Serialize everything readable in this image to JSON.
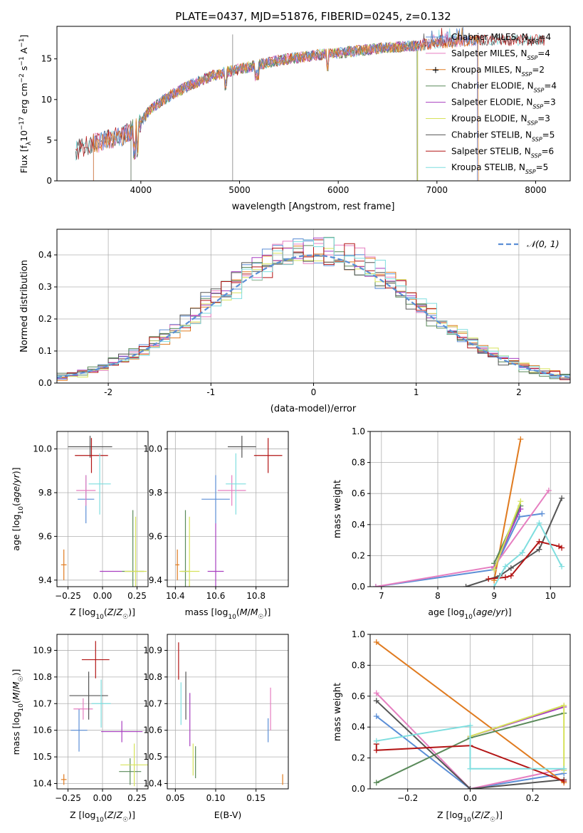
{
  "title": "PLATE=0437, MJD=51876, FIBERID=0245, z=0.132",
  "colors": {
    "Chabrier MILES": "#5b8ed6",
    "Salpeter MILES": "#e67ec0",
    "Kroupa MILES": "#e07b20",
    "Chabrier ELODIE": "#5a8a5a",
    "Salpeter ELODIE": "#a83fc0",
    "Kroupa ELODIE": "#d6e25a",
    "Chabrier STELIB": "#555555",
    "Salpeter STELIB": "#b31515",
    "Kroupa STELIB": "#7fdedf"
  },
  "chart_data": [
    {
      "type": "line",
      "panel": "spectrum",
      "xlabel": "wavelength [Angstrom, rest frame]",
      "ylabel": "Flux [f_λ10^-17 erg cm^-2 s^-1 A^-1]",
      "xlim": [
        3150,
        8350
      ],
      "ylim": [
        0,
        19
      ],
      "xticks": [
        4000,
        5000,
        6000,
        7000,
        8000
      ],
      "yticks": [
        0,
        5,
        10,
        15
      ],
      "grid": false,
      "legend_position": "right",
      "series": [
        {
          "name": "Chabrier MILES",
          "nssp": "4"
        },
        {
          "name": "Salpeter MILES",
          "nssp": "4"
        },
        {
          "name": "Kroupa MILES",
          "nssp": "2"
        },
        {
          "name": "Chabrier ELODIE",
          "nssp": "4"
        },
        {
          "name": "Salpeter ELODIE",
          "nssp": "3"
        },
        {
          "name": "Kroupa ELODIE",
          "nssp": "3"
        },
        {
          "name": "Chabrier STELIB",
          "nssp": "5"
        },
        {
          "name": "Salpeter STELIB",
          "nssp": "6"
        },
        {
          "name": "Kroupa STELIB",
          "nssp": "5"
        }
      ],
      "continuum_x": [
        3340,
        3500,
        3650,
        3800,
        3950,
        4100,
        4300,
        4500,
        4700,
        4900,
        5100,
        5300,
        5500,
        5800,
        6000,
        6200,
        6500,
        6800,
        7000,
        7200,
        7400
      ],
      "continuum_y": [
        3.8,
        4.5,
        5.0,
        5.5,
        6.5,
        8.8,
        10.5,
        11.8,
        12.8,
        13.5,
        14.0,
        14.6,
        15.0,
        15.5,
        15.7,
        16.0,
        16.4,
        16.6,
        16.9,
        17.1,
        17.3
      ]
    },
    {
      "type": "line",
      "panel": "residual_distribution",
      "xlabel": "(data-model)/error",
      "ylabel": "Normed distribution",
      "xlim": [
        -2.5,
        2.5
      ],
      "ylim": [
        0,
        0.48
      ],
      "xticks": [
        -2,
        -1,
        0,
        1,
        2
      ],
      "yticks": [
        0.0,
        0.1,
        0.2,
        0.3,
        0.4
      ],
      "grid": true,
      "legend": "𝒩(0, 1)",
      "legend_position": "top-right"
    },
    {
      "type": "scatter",
      "panel": "age_vs_Z",
      "xlabel": "Z [log₁₀(Z/Z☉)]",
      "ylabel": "age  [log₁₀(age/yr)]",
      "xlim": [
        -0.33,
        0.33
      ],
      "ylim": [
        9.37,
        10.08
      ],
      "xticks": [
        -0.25,
        0.0,
        0.25
      ],
      "xtick_labels": [
        "−0.25",
        "0.00",
        "0.25"
      ],
      "yticks": [
        9.4,
        9.6,
        9.8,
        10.0
      ],
      "grid": true,
      "points": [
        {
          "model": "Chabrier MILES",
          "x": -0.12,
          "xerr": 0.06,
          "y": 9.77,
          "yerr": 0.11
        },
        {
          "model": "Salpeter MILES",
          "x": -0.12,
          "xerr": 0.07,
          "y": 9.81,
          "yerr": 0.07
        },
        {
          "model": "Kroupa MILES",
          "x": -0.28,
          "xerr": 0.02,
          "y": 9.47,
          "yerr": 0.07
        },
        {
          "model": "Chabrier ELODIE",
          "x": 0.22,
          "xerr": 0.08,
          "y": 9.44,
          "yerr": 0.28
        },
        {
          "model": "Salpeter ELODIE",
          "x": 0.06,
          "xerr": 0.08,
          "y": 9.44,
          "yerr": 0.0
        },
        {
          "model": "Kroupa ELODIE",
          "x": 0.24,
          "xerr": 0.08,
          "y": 9.44,
          "yerr": 0.25
        },
        {
          "model": "Chabrier STELIB",
          "x": -0.09,
          "xerr": 0.16,
          "y": 10.01,
          "yerr": 0.05
        },
        {
          "model": "Salpeter STELIB",
          "x": -0.08,
          "xerr": 0.12,
          "y": 9.97,
          "yerr": 0.08
        },
        {
          "model": "Kroupa STELIB",
          "x": -0.02,
          "xerr": 0.08,
          "y": 9.84,
          "yerr": 0.14
        }
      ]
    },
    {
      "type": "scatter",
      "panel": "age_vs_mass",
      "xlabel": "mass [log₁₀(M/M☉)]",
      "xlim": [
        10.36,
        10.96
      ],
      "ylim": [
        9.37,
        10.08
      ],
      "xticks": [
        10.4,
        10.6,
        10.8
      ],
      "yticks": [
        9.4,
        9.6,
        9.8,
        10.0
      ],
      "grid": true,
      "points": [
        {
          "model": "Chabrier MILES",
          "x": 10.6,
          "xerr": 0.07,
          "y": 9.77,
          "yerr": 0.11
        },
        {
          "model": "Salpeter MILES",
          "x": 10.68,
          "xerr": 0.07,
          "y": 9.81,
          "yerr": 0.07
        },
        {
          "model": "Kroupa MILES",
          "x": 10.41,
          "xerr": 0.01,
          "y": 9.47,
          "yerr": 0.07
        },
        {
          "model": "Chabrier ELODIE",
          "x": 10.45,
          "xerr": 0.02,
          "y": 9.44,
          "yerr": 0.28
        },
        {
          "model": "Salpeter ELODIE",
          "x": 10.6,
          "xerr": 0.04,
          "y": 9.44,
          "yerr": 0.22
        },
        {
          "model": "Kroupa ELODIE",
          "x": 10.47,
          "xerr": 0.05,
          "y": 9.44,
          "yerr": 0.25
        },
        {
          "model": "Chabrier STELIB",
          "x": 10.73,
          "xerr": 0.07,
          "y": 10.01,
          "yerr": 0.05
        },
        {
          "model": "Salpeter STELIB",
          "x": 10.86,
          "xerr": 0.07,
          "y": 9.97,
          "yerr": 0.08
        },
        {
          "model": "Kroupa STELIB",
          "x": 10.7,
          "xerr": 0.05,
          "y": 9.84,
          "yerr": 0.14
        }
      ]
    },
    {
      "type": "line",
      "panel": "mass_weight_vs_age",
      "xlabel": "age  [log₁₀(age/yr)]",
      "ylabel": "mass weight",
      "xlim": [
        6.8,
        10.35
      ],
      "ylim": [
        0,
        1.0
      ],
      "xticks": [
        7,
        8,
        9,
        10
      ],
      "yticks": [
        0.0,
        0.2,
        0.4,
        0.6,
        0.8,
        1.0
      ],
      "grid": true,
      "series": [
        {
          "model": "Chabrier MILES",
          "x": [
            6.9,
            9.0,
            9.45,
            9.85
          ],
          "y": [
            0.0,
            0.11,
            0.45,
            0.47
          ]
        },
        {
          "model": "Salpeter MILES",
          "x": [
            6.9,
            9.0,
            9.97
          ],
          "y": [
            0.0,
            0.13,
            0.62
          ]
        },
        {
          "model": "Kroupa MILES",
          "x": [
            9.0,
            9.47
          ],
          "y": [
            0.04,
            0.95
          ]
        },
        {
          "model": "Chabrier ELODIE",
          "x": [
            9.0,
            9.47
          ],
          "y": [
            0.15,
            0.52
          ]
        },
        {
          "model": "Salpeter ELODIE",
          "x": [
            9.0,
            9.47
          ],
          "y": [
            0.12,
            0.5
          ]
        },
        {
          "model": "Kroupa ELODIE",
          "x": [
            9.0,
            9.47
          ],
          "y": [
            0.11,
            0.55
          ]
        },
        {
          "model": "Chabrier STELIB",
          "x": [
            8.5,
            9.1,
            9.3,
            9.8,
            10.2
          ],
          "y": [
            0.0,
            0.07,
            0.12,
            0.24,
            0.57
          ]
        },
        {
          "model": "Salpeter STELIB",
          "x": [
            8.9,
            9.2,
            9.3,
            9.8,
            10.15,
            10.2
          ],
          "y": [
            0.05,
            0.06,
            0.07,
            0.29,
            0.26,
            0.25
          ]
        },
        {
          "model": "Kroupa STELIB",
          "x": [
            9.0,
            9.2,
            9.5,
            9.8,
            10.2
          ],
          "y": [
            0.0,
            0.13,
            0.22,
            0.41,
            0.13
          ]
        }
      ]
    },
    {
      "type": "scatter",
      "panel": "mass_vs_Z",
      "xlabel": "Z [log₁₀(Z/Z☉)]",
      "ylabel": "mass [log₁₀(M/M☉)]",
      "xlim": [
        -0.33,
        0.33
      ],
      "ylim": [
        10.38,
        10.96
      ],
      "xticks": [
        -0.25,
        0.0,
        0.25
      ],
      "xtick_labels": [
        "−0.25",
        "0.00",
        "0.25"
      ],
      "yticks": [
        10.4,
        10.5,
        10.6,
        10.7,
        10.8,
        10.9
      ],
      "grid": true,
      "points": [
        {
          "model": "Chabrier MILES",
          "x": -0.17,
          "xerr": 0.06,
          "y": 10.6,
          "yerr": 0.08
        },
        {
          "model": "Salpeter MILES",
          "x": -0.14,
          "xerr": 0.07,
          "y": 10.68,
          "yerr": 0.04
        },
        {
          "model": "Kroupa MILES",
          "x": -0.28,
          "xerr": 0.02,
          "y": 10.415,
          "yerr": 0.02
        },
        {
          "model": "Chabrier ELODIE",
          "x": 0.2,
          "xerr": 0.08,
          "y": 10.445,
          "yerr": 0.05
        },
        {
          "model": "Salpeter ELODIE",
          "x": 0.14,
          "xerr": 0.15,
          "y": 10.595,
          "yerr": 0.04
        },
        {
          "model": "Kroupa ELODIE",
          "x": 0.23,
          "xerr": 0.1,
          "y": 10.47,
          "yerr": 0.08
        },
        {
          "model": "Chabrier STELIB",
          "x": -0.1,
          "xerr": 0.14,
          "y": 10.73,
          "yerr": 0.09
        },
        {
          "model": "Salpeter STELIB",
          "x": -0.05,
          "xerr": 0.1,
          "y": 10.865,
          "yerr": 0.07
        },
        {
          "model": "Kroupa STELIB",
          "x": -0.01,
          "xerr": 0.07,
          "y": 10.7,
          "yerr": 0.09
        }
      ]
    },
    {
      "type": "scatter",
      "panel": "mass_vs_EBV",
      "xlabel": "E(B-V)",
      "xlim": [
        0.04,
        0.19
      ],
      "ylim": [
        10.38,
        10.96
      ],
      "xticks": [
        0.05,
        0.1,
        0.15
      ],
      "xtick_labels": [
        "0.05",
        "0.10",
        "0.15"
      ],
      "yticks": [
        10.4,
        10.5,
        10.6,
        10.7,
        10.8,
        10.9
      ],
      "grid": true,
      "points": [
        {
          "model": "Chabrier MILES",
          "x": 0.165,
          "y": 10.6,
          "yerr": 0.045
        },
        {
          "model": "Salpeter MILES",
          "x": 0.168,
          "y": 10.68,
          "yerr": 0.08
        },
        {
          "model": "Kroupa MILES",
          "x": 0.183,
          "y": 10.415,
          "yerr": 0.02
        },
        {
          "model": "Chabrier ELODIE",
          "x": 0.075,
          "y": 10.48,
          "yerr": 0.06
        },
        {
          "model": "Salpeter ELODIE",
          "x": 0.068,
          "y": 10.64,
          "yerr": 0.1
        },
        {
          "model": "Kroupa ELODIE",
          "x": 0.072,
          "y": 10.49,
          "yerr": 0.06
        },
        {
          "model": "Chabrier STELIB",
          "x": 0.063,
          "y": 10.73,
          "yerr": 0.09
        },
        {
          "model": "Salpeter STELIB",
          "x": 0.054,
          "y": 10.86,
          "yerr": 0.07
        },
        {
          "model": "Kroupa STELIB",
          "x": 0.057,
          "y": 10.7,
          "yerr": 0.08
        }
      ]
    },
    {
      "type": "line",
      "panel": "mass_weight_vs_Z",
      "xlabel": "Z [log₁₀(Z/Z☉)]",
      "ylabel": "mass weight",
      "xlim": [
        -0.32,
        0.32
      ],
      "ylim": [
        0,
        1.0
      ],
      "xticks": [
        -0.2,
        0.0,
        0.2
      ],
      "xtick_labels": [
        "−0.2",
        "0.0",
        "0.2"
      ],
      "yticks": [
        0.0,
        0.2,
        0.4,
        0.6,
        0.8,
        1.0
      ],
      "grid": true,
      "series": [
        {
          "model": "Chabrier MILES",
          "x": [
            -0.3,
            0.0,
            0.3
          ],
          "y": [
            0.47,
            0.0,
            0.1
          ]
        },
        {
          "model": "Salpeter MILES",
          "x": [
            -0.3,
            0.0,
            0.3
          ],
          "y": [
            0.62,
            0.0,
            0.13
          ]
        },
        {
          "model": "Kroupa MILES",
          "x": [
            -0.3,
            0.3
          ],
          "y": [
            0.95,
            0.04
          ]
        },
        {
          "model": "Chabrier ELODIE",
          "x": [
            -0.3,
            0.0,
            0.3
          ],
          "y": [
            0.04,
            0.33,
            0.49
          ]
        },
        {
          "model": "Salpeter ELODIE",
          "x": [
            0.0,
            0.3
          ],
          "y": [
            0.34,
            0.53
          ]
        },
        {
          "model": "Kroupa ELODIE",
          "x": [
            0.0,
            0.3,
            0.3
          ],
          "y": [
            0.34,
            0.54,
            0.12
          ]
        },
        {
          "model": "Chabrier STELIB",
          "x": [
            -0.3,
            0.0,
            0.3
          ],
          "y": [
            0.57,
            0.0,
            0.06
          ]
        },
        {
          "model": "Salpeter STELIB",
          "x": [
            -0.3,
            -0.3,
            0.0,
            0.3
          ],
          "y": [
            0.29,
            0.25,
            0.28,
            0.05
          ]
        },
        {
          "model": "Kroupa STELIB",
          "x": [
            -0.3,
            0.0,
            0.0,
            0.3
          ],
          "y": [
            0.31,
            0.41,
            0.13,
            0.13
          ]
        }
      ]
    }
  ]
}
